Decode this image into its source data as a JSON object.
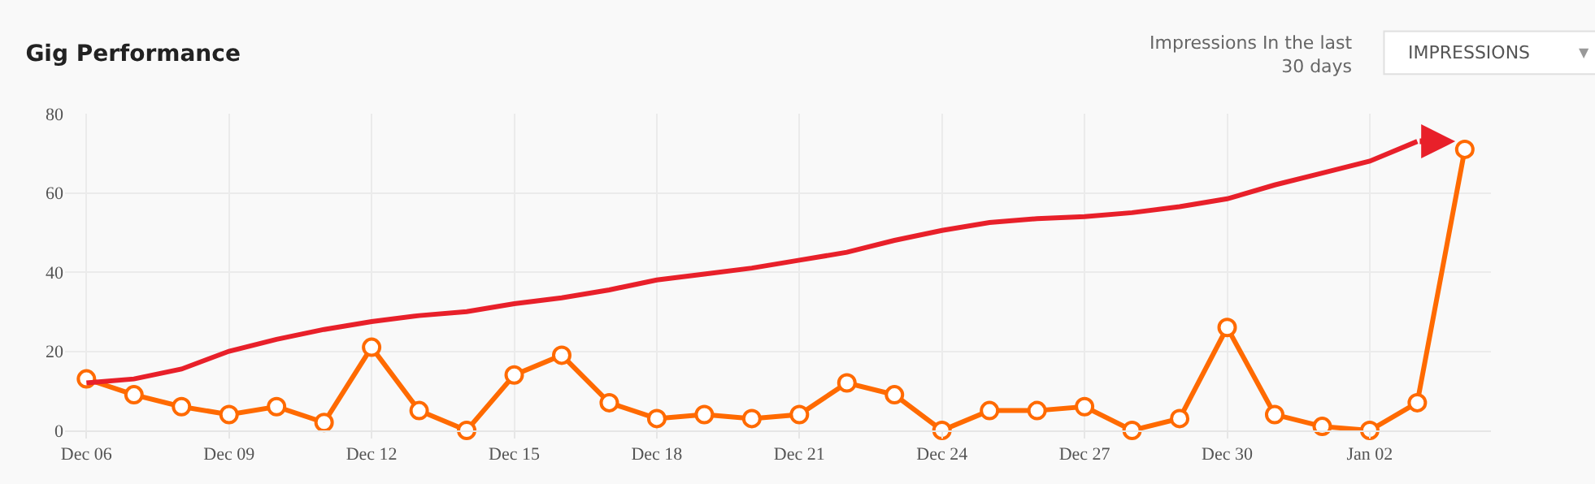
{
  "chart_data": {
    "type": "line",
    "title": "Gig Performance",
    "annotations": [
      "Impressions In the last\n30 days",
      "IMPRESSIONS",
      "▼"
    ],
    "categories": [
      "Dec 06",
      null,
      null,
      "Dec 09",
      null,
      null,
      "Dec 12",
      null,
      null,
      "Dec 15",
      null,
      null,
      "Dec 18",
      null,
      null,
      "Dec 21",
      null,
      null,
      "Dec 24",
      null,
      null,
      "Dec 27",
      null,
      null,
      "Dec 30",
      null,
      null,
      "Jan 02",
      null,
      null
    ],
    "series": [
      {
        "color": "#ff6a00",
        "values": [
          13,
          9,
          6,
          4,
          6,
          2,
          21,
          5,
          0,
          14,
          19,
          7,
          3,
          4,
          3,
          4,
          12,
          9,
          0,
          5,
          5,
          6,
          0,
          3,
          26,
          4,
          1,
          0,
          7,
          71
        ]
      },
      {
        "type": "line",
        "marker": "none",
        "color": "#e8202a",
        "values": [
          12,
          13,
          15.5,
          20,
          23,
          25.5,
          27.5,
          29,
          30,
          32,
          33.5,
          35.5,
          38,
          39.5,
          41,
          43,
          45,
          48,
          50.5,
          52.5,
          53.5,
          54,
          55,
          56.5,
          58.5,
          62,
          65,
          68,
          73,
          null
        ]
      }
    ],
    "ylim": [
      0,
      80
    ],
    "yticks": [
      0,
      20,
      40,
      60,
      80
    ],
    "grid": true,
    "marker": "circle",
    "line_style": "solid"
  }
}
